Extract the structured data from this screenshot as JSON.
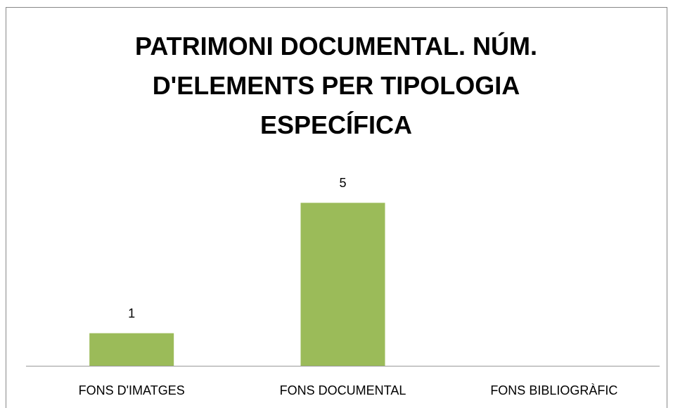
{
  "chart_data": {
    "type": "bar",
    "title": "PATRIMONI DOCUMENTAL. NÚM. D'ELEMENTS PER TIPOLOGIA ESPECÍFICA",
    "categories": [
      "FONS D'IMATGES",
      "FONS DOCUMENTAL",
      "FONS BIBLIOGRÀFIC"
    ],
    "values": [
      1,
      5,
      null
    ],
    "color": "#9bbb59",
    "ylim": [
      0,
      6
    ]
  }
}
